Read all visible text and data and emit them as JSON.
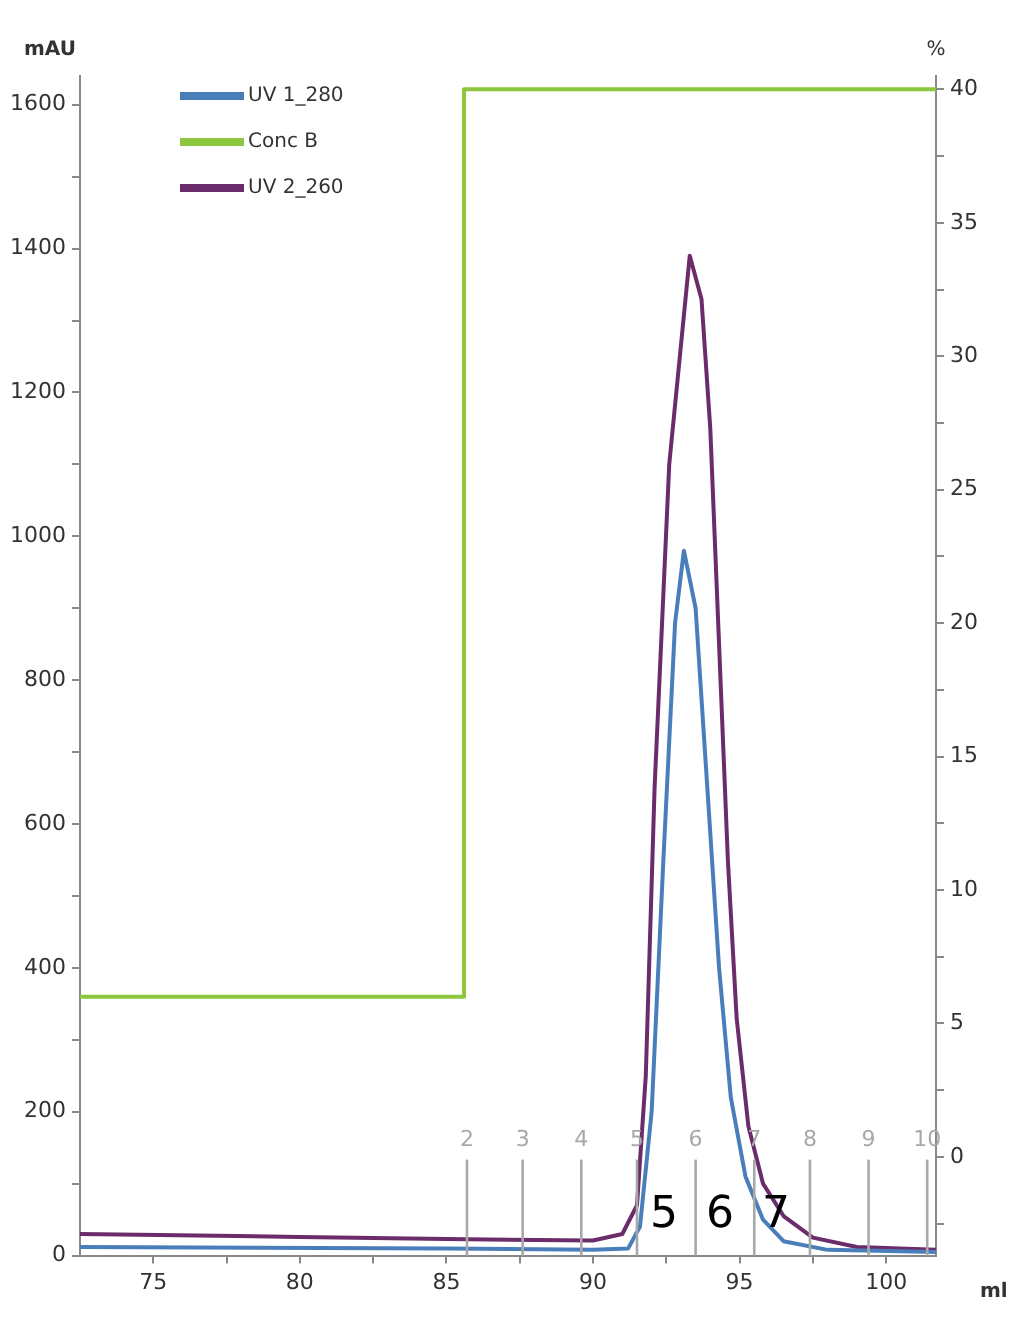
{
  "chart_data": {
    "type": "line",
    "xlabel": "ml",
    "ylabel": "mAU",
    "y2label": "%",
    "legend": "top left",
    "grid": false,
    "marker": "none",
    "xlim": [
      72.5,
      101.7
    ],
    "xticks": [
      75,
      {
        "value": 77.5,
        "label": null
      },
      80,
      {
        "value": 82.5,
        "label": null
      },
      85,
      {
        "value": 87.5,
        "label": null
      },
      90,
      {
        "value": 92.5,
        "label": null
      },
      95,
      {
        "value": 97.5,
        "label": null
      },
      100
    ],
    "ylim": [
      0,
      1640
    ],
    "yticks": [
      0,
      {
        "value": 100,
        "label": null
      },
      200,
      {
        "value": 300,
        "label": null
      },
      400,
      {
        "value": 500,
        "label": null
      },
      600,
      {
        "value": 700,
        "label": null
      },
      800,
      {
        "value": 900,
        "label": null
      },
      1000,
      {
        "value": 1100,
        "label": null
      },
      1200,
      {
        "value": 1300,
        "label": null
      },
      1400,
      {
        "value": 1500,
        "label": null
      },
      1600
    ],
    "y2lim": [
      -3.7,
      40.5
    ],
    "y2ticks": [
      {
        "value": -2.5,
        "label": null
      },
      0,
      {
        "value": 2.5,
        "label": null
      },
      5,
      {
        "value": 7.5,
        "label": null
      },
      10,
      {
        "value": 12.5,
        "label": null
      },
      15,
      {
        "value": 17.5,
        "label": null
      },
      20,
      {
        "value": 22.5,
        "label": null
      },
      25,
      {
        "value": 27.5,
        "label": null
      },
      30,
      {
        "value": 32.5,
        "label": null
      },
      35,
      {
        "value": 37.5,
        "label": null
      },
      40
    ],
    "series": [
      {
        "name": "UV 1_280",
        "color": "#4a7ebb",
        "x": [
          72.5,
          85,
          90,
          91.2,
          91.6,
          92,
          92.4,
          92.8,
          93.1,
          93.5,
          93.9,
          94.3,
          94.7,
          95.2,
          95.8,
          96.5,
          98,
          101.7
        ],
        "values": [
          12,
          10,
          8,
          10,
          40,
          200,
          550,
          880,
          980,
          900,
          650,
          400,
          220,
          110,
          50,
          20,
          8,
          5
        ]
      },
      {
        "name": "Conc B",
        "color": "#8cc63e",
        "axis": "y2",
        "x": [
          72.5,
          85.6,
          85.6,
          101.7
        ],
        "values": [
          6,
          6,
          40,
          40
        ]
      },
      {
        "name": "UV 2_260",
        "color": "#6b2c6b",
        "x": [
          72.5,
          80,
          85,
          90,
          91,
          91.5,
          91.8,
          92.1,
          92.6,
          93.3,
          93.7,
          94,
          94.3,
          94.6,
          94.9,
          95.3,
          95.8,
          96.5,
          97.5,
          99,
          101.7
        ],
        "values": [
          30,
          26,
          23,
          21,
          30,
          70,
          250,
          650,
          1100,
          1390,
          1330,
          1150,
          850,
          550,
          330,
          180,
          100,
          55,
          25,
          12,
          8
        ]
      }
    ],
    "ref_lines": [
      {
        "axis": "x",
        "value": 85.7
      },
      {
        "axis": "x",
        "value": 87.6
      },
      {
        "axis": "x",
        "value": 89.6
      },
      {
        "axis": "x",
        "value": 91.5
      },
      {
        "axis": "x",
        "value": 93.5
      },
      {
        "axis": "x",
        "value": 95.5
      },
      {
        "axis": "x",
        "value": 97.4
      },
      {
        "axis": "x",
        "value": 99.4
      },
      {
        "axis": "x",
        "value": 101.4
      }
    ],
    "annotations": [
      "2",
      "3",
      "4",
      "5",
      "6",
      "7",
      "8",
      "9",
      "10",
      "5",
      "6",
      "7"
    ]
  }
}
